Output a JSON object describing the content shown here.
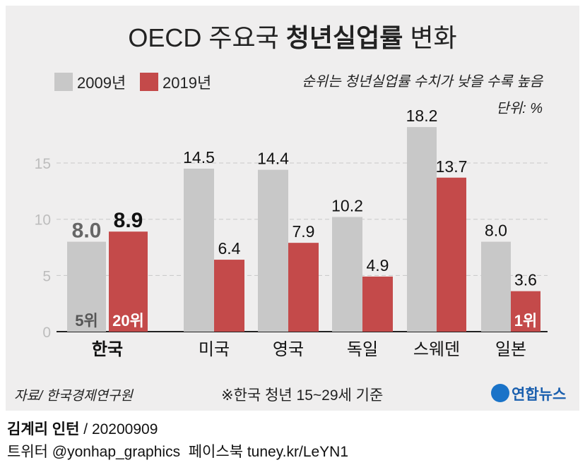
{
  "chart_data": {
    "type": "bar",
    "title_plain": "OECD 주요국 ",
    "title_bold": "청년실업률",
    "title_tail": " 변화",
    "categories": [
      "한국",
      "미국",
      "영국",
      "독일",
      "스웨덴",
      "일본"
    ],
    "series": [
      {
        "name": "2009년",
        "color": "#c8c8c8",
        "values": [
          8.0,
          14.5,
          14.4,
          10.2,
          18.2,
          8.0
        ]
      },
      {
        "name": "2019년",
        "color": "#c44a4a",
        "values": [
          8.9,
          6.4,
          7.9,
          4.9,
          13.7,
          3.6
        ]
      }
    ],
    "yticks": [
      0,
      5,
      10,
      15
    ],
    "ylim": [
      0,
      20
    ],
    "grid": true,
    "legend_position": "top-left",
    "rank_labels": [
      {
        "category": "한국",
        "series": "2009년",
        "text": "5위"
      },
      {
        "category": "한국",
        "series": "2019년",
        "text": "20위"
      },
      {
        "category": "일본",
        "series": "2019년",
        "text": "1위"
      }
    ],
    "note_rank": "순위는 청년실업률 수치가 낮을 수록 높음",
    "unit": "단위: %",
    "source": "자료/ 한국경제연구원",
    "footnote": "※한국 청년 15~29세 기준"
  },
  "brand": "연합뉴스",
  "credit_name": "김계리 인턴",
  "credit_date": " / 20200909",
  "social": "트위터 @yonhap_graphics  페이스북 tuney.kr/LeYN1"
}
